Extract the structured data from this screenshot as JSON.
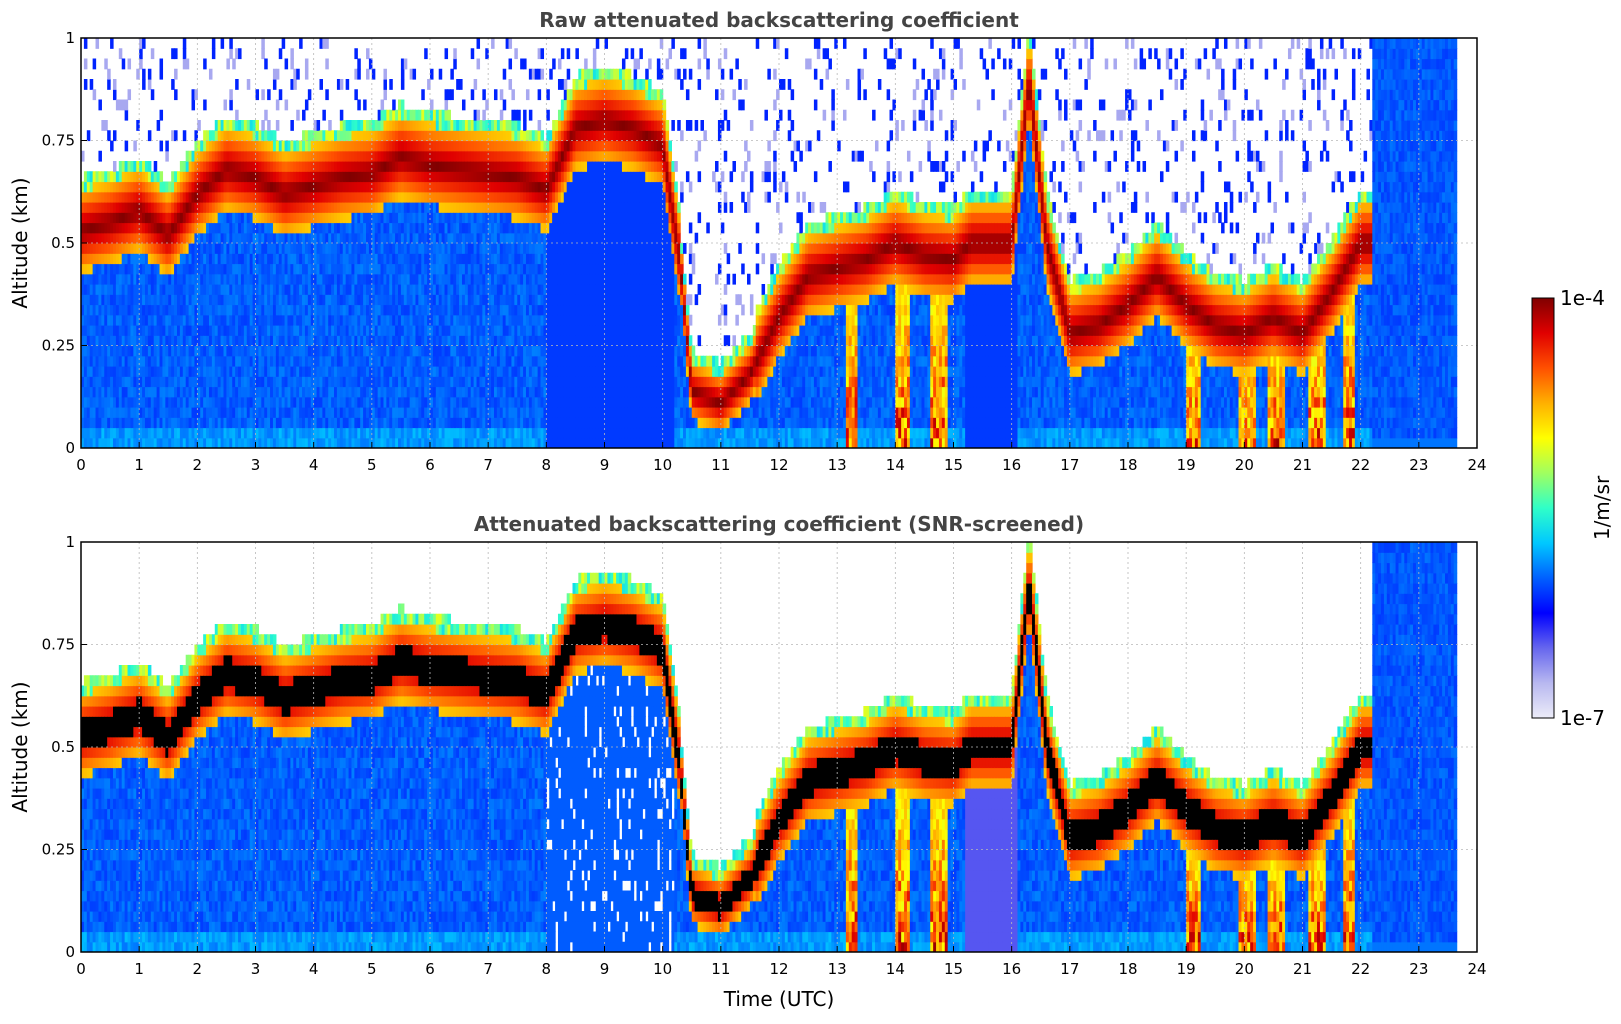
{
  "chart_data": [
    {
      "type": "heatmap",
      "title": "Raw attenuated backscattering coefficient",
      "xlabel": "",
      "ylabel": "Altitude (km)",
      "xlim": [
        0,
        24
      ],
      "ylim": [
        0,
        1
      ],
      "x_ticks": [
        "0",
        "1",
        "2",
        "3",
        "4",
        "5",
        "6",
        "7",
        "8",
        "9",
        "10",
        "11",
        "12",
        "13",
        "14",
        "15",
        "16",
        "17",
        "18",
        "19",
        "20",
        "21",
        "22",
        "23",
        "24"
      ],
      "y_ticks": [
        "0",
        "0.25",
        "0.5",
        "0.75",
        "1"
      ],
      "grid": true,
      "data_end_hour": 23.65,
      "layer_profile": {
        "description": "approximate altitude (km) of the strong-backscatter layer centre vs time (UTC h)",
        "time": [
          0,
          0.5,
          1,
          1.5,
          2,
          2.5,
          3,
          3.5,
          4,
          4.5,
          5,
          5.5,
          6,
          6.5,
          7,
          7.5,
          8,
          8.5,
          9,
          9.5,
          10,
          10.3,
          10.5,
          11,
          11.5,
          12,
          12.5,
          13,
          13.5,
          14,
          14.5,
          15,
          15.3,
          16,
          16.3,
          16.6,
          17,
          17.5,
          18,
          18.5,
          19,
          19.5,
          20,
          20.5,
          21,
          21.5,
          22
        ],
        "altitude": [
          0.53,
          0.55,
          0.58,
          0.52,
          0.62,
          0.68,
          0.66,
          0.62,
          0.64,
          0.66,
          0.67,
          0.71,
          0.69,
          0.68,
          0.67,
          0.66,
          0.63,
          0.78,
          0.8,
          0.78,
          0.74,
          0.45,
          0.14,
          0.11,
          0.18,
          0.32,
          0.42,
          0.44,
          0.46,
          0.5,
          0.47,
          0.46,
          0.5,
          0.5,
          0.9,
          0.5,
          0.28,
          0.3,
          0.35,
          0.42,
          0.35,
          0.3,
          0.28,
          0.32,
          0.28,
          0.38,
          0.5
        ]
      }
    },
    {
      "type": "heatmap",
      "title": "Attenuated backscattering coefficient (SNR-screened)",
      "xlabel": "Time (UTC)",
      "ylabel": "Altitude (km)",
      "xlim": [
        0,
        24
      ],
      "ylim": [
        0,
        1
      ],
      "x_ticks": [
        "0",
        "1",
        "2",
        "3",
        "4",
        "5",
        "6",
        "7",
        "8",
        "9",
        "10",
        "11",
        "12",
        "13",
        "14",
        "15",
        "16",
        "17",
        "18",
        "19",
        "20",
        "21",
        "22",
        "23",
        "24"
      ],
      "y_ticks": [
        "0",
        "0.25",
        "0.5",
        "0.75",
        "1"
      ],
      "grid": true,
      "data_end_hour": 23.65,
      "saturated_color": "#000000"
    }
  ],
  "colorbar": {
    "label": "1/m/sr",
    "max_label": "1e-4",
    "min_label": "1e-7",
    "scale": "log",
    "range": [
      1e-07,
      0.0001
    ],
    "colormap": [
      "#ececf8",
      "#b8b8f0",
      "#6666ee",
      "#0000ff",
      "#0060ff",
      "#00c8ff",
      "#30ffc8",
      "#a0ff60",
      "#ffff00",
      "#ffb000",
      "#ff5000",
      "#e00000",
      "#800000"
    ]
  }
}
